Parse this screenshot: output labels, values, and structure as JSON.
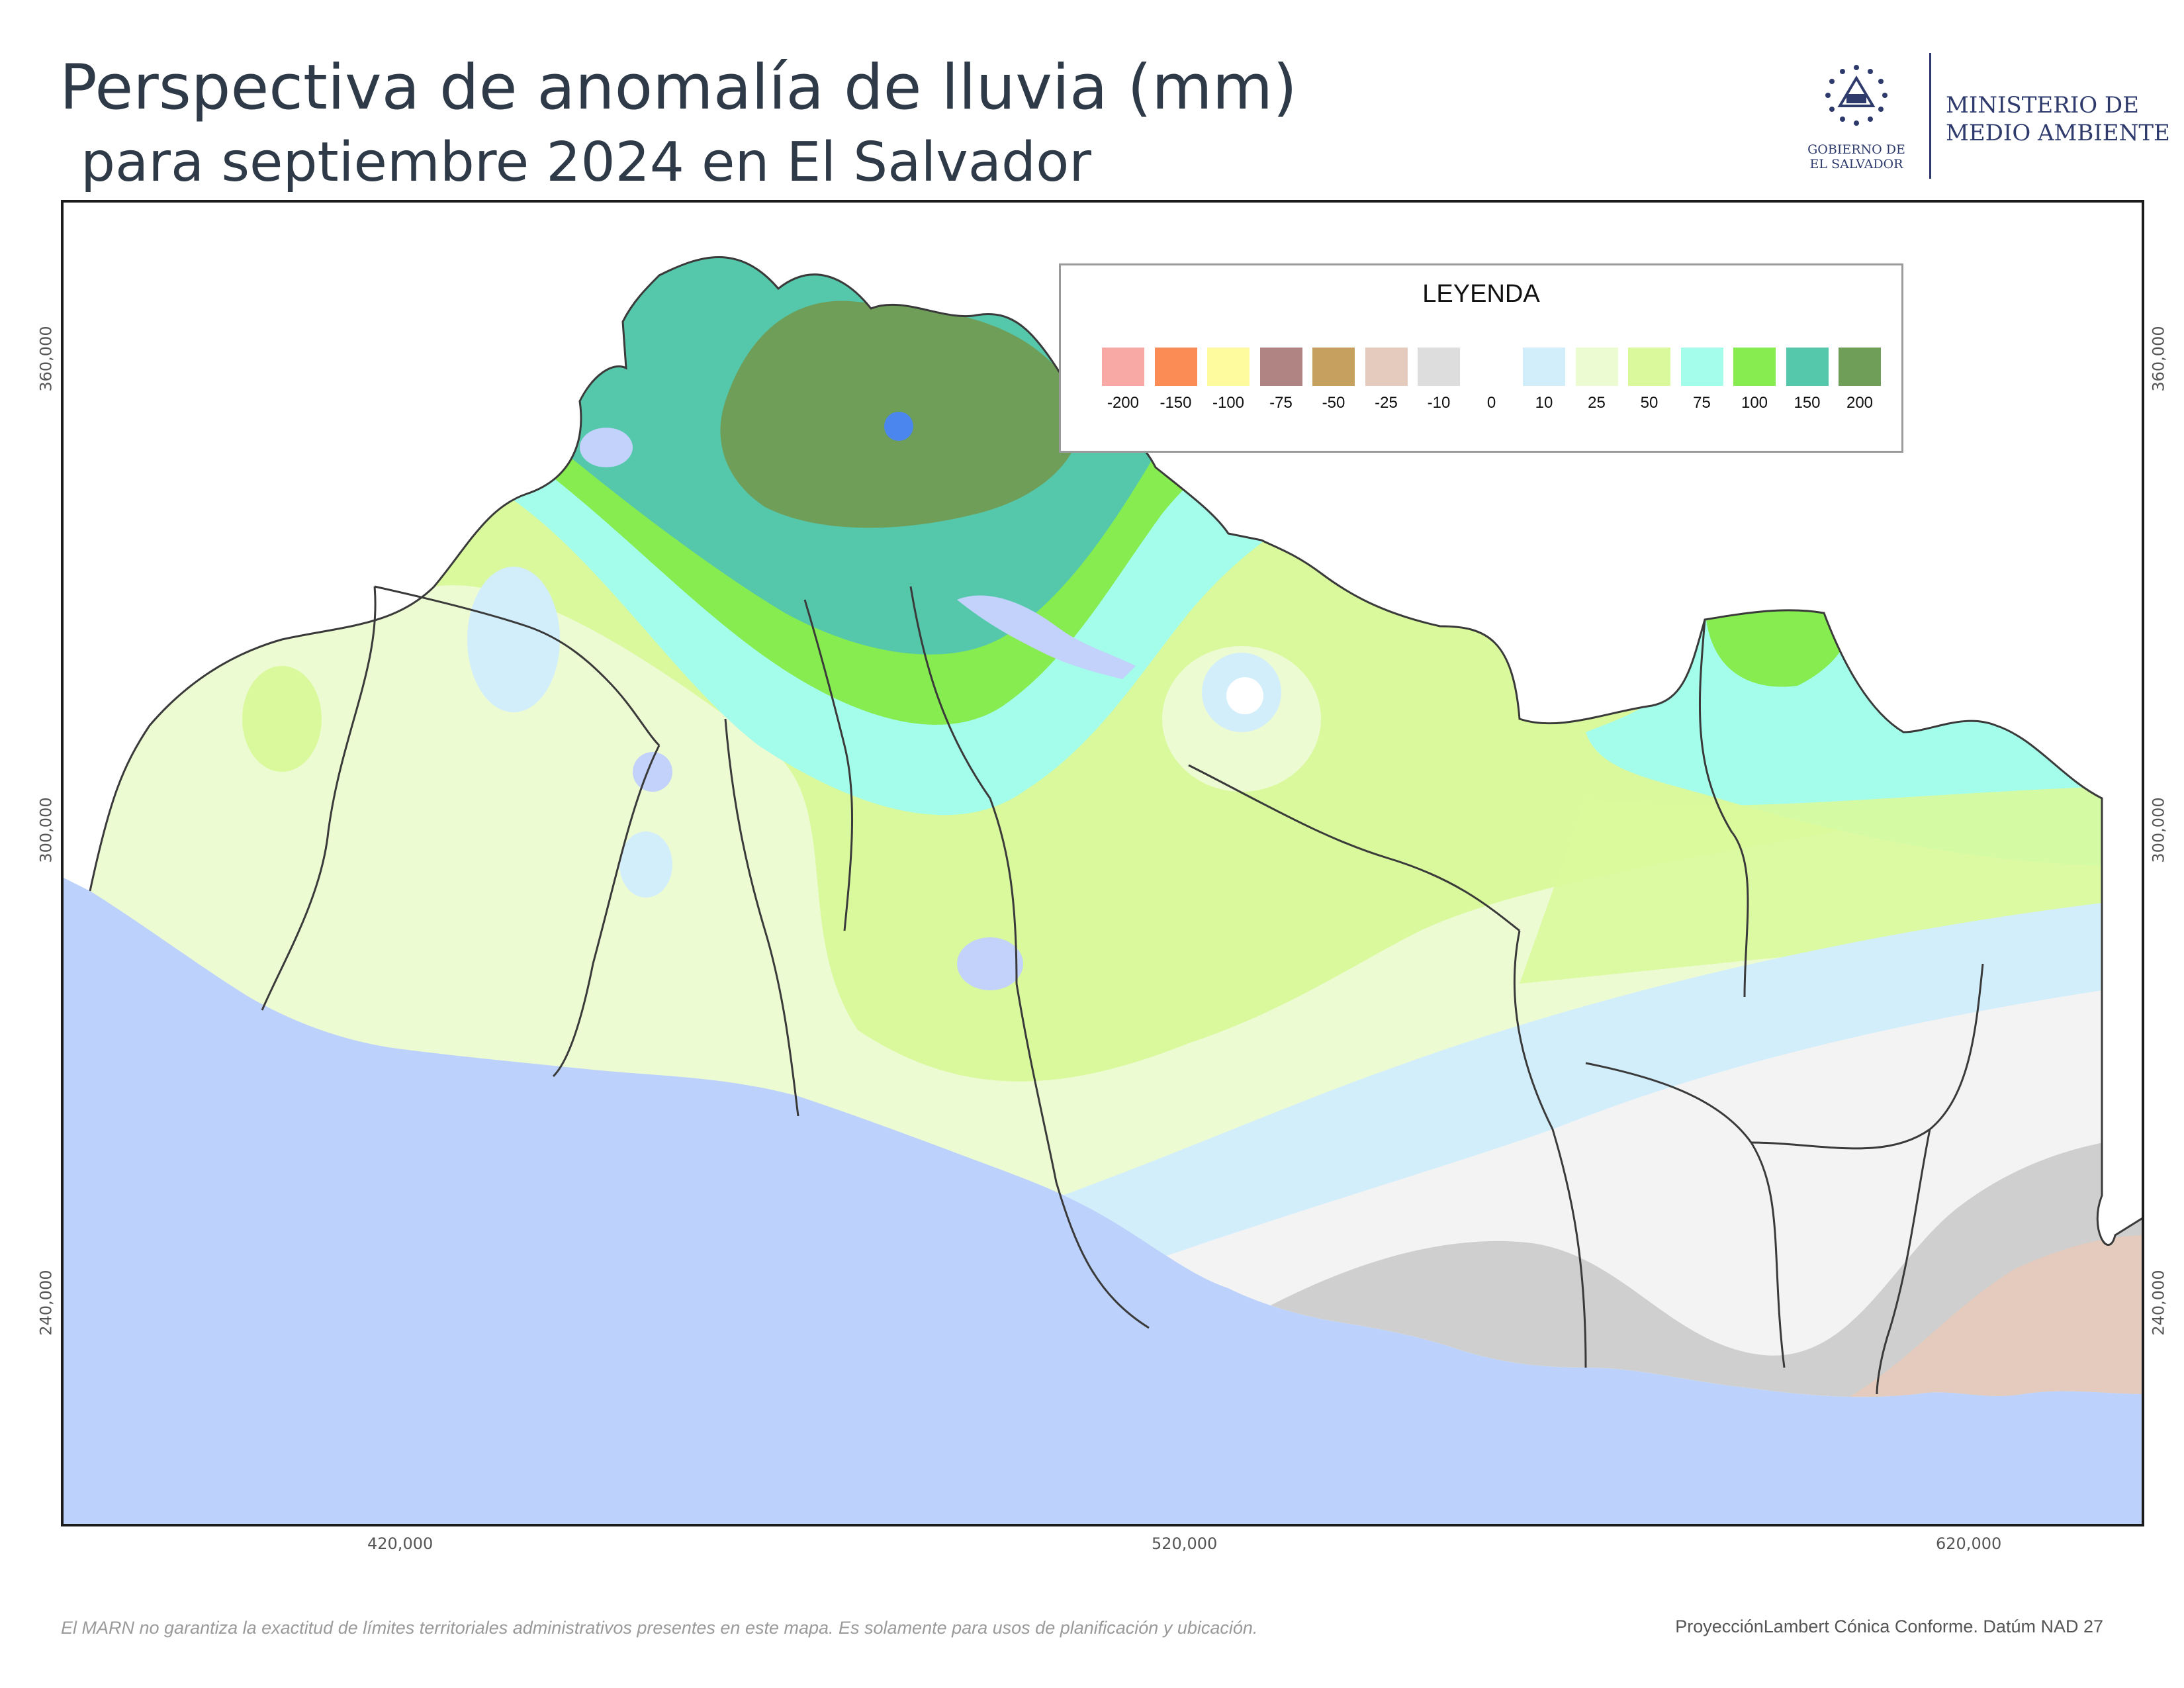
{
  "title": "Perspectiva de anomalía de lluvia  (mm)",
  "subtitle": "para septiembre 2024 en El Salvador",
  "logo": {
    "government": [
      "GOBIERNO DE",
      "EL SALVADOR"
    ],
    "ministry": [
      "MINISTERIO DE",
      "MEDIO AMBIENTE"
    ],
    "icon": "coat-of-arms-icon"
  },
  "legend": {
    "title": "LEYENDA",
    "items": [
      {
        "value": "-200",
        "color": "#f8a9a6"
      },
      {
        "value": "-150",
        "color": "#fb8c55"
      },
      {
        "value": "-100",
        "color": "#fdfb9d"
      },
      {
        "value": "-75",
        "color": "#b08482"
      },
      {
        "value": "-50",
        "color": "#c6a05e"
      },
      {
        "value": "-25",
        "color": "#e4cbbd"
      },
      {
        "value": "-10",
        "color": "#dddddd"
      },
      {
        "value": "0",
        "color": "#ffffff"
      },
      {
        "value": "10",
        "color": "#d3eefb"
      },
      {
        "value": "25",
        "color": "#edfbd3"
      },
      {
        "value": "50",
        "color": "#d9f99c"
      },
      {
        "value": "75",
        "color": "#a4fdeb"
      },
      {
        "value": "100",
        "color": "#86ec4f"
      },
      {
        "value": "150",
        "color": "#55c8ab"
      },
      {
        "value": "200",
        "color": "#6f9e59"
      }
    ]
  },
  "axes": {
    "x_ticks": [
      "420,000",
      "520,000",
      "620,000"
    ],
    "y_ticks": [
      "360,000",
      "300,000",
      "240,000"
    ]
  },
  "colors": {
    "ocean": "#bcd1fc",
    "lake": "#c2d2fa",
    "border": "#3a3a3a"
  },
  "disclaimer": "El MARN no garantiza la exactitud de límites territoriales administrativos presentes en este mapa. Es solamente para usos de planificación y ubicación.",
  "projection": "ProyecciónLambert Cónica Conforme. Datúm NAD 27"
}
